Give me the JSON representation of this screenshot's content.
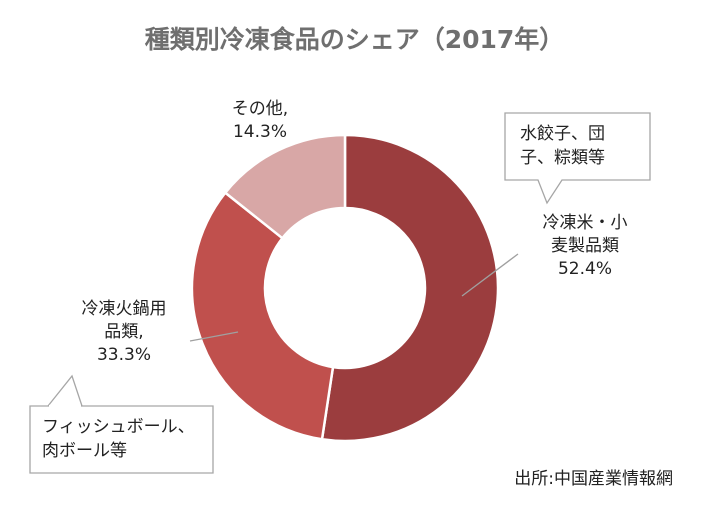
{
  "title": "種類別冷凍食品のシェア（2017年）",
  "chart_data": {
    "type": "pie",
    "subtype": "donut",
    "title": "種類別冷凍食品のシェア（2017年）",
    "slices": [
      {
        "label_lines": [
          "冷凍米・小",
          "麦製品類"
        ],
        "value_text": "52.4%",
        "value": 52.4,
        "color": "#9b3d3e"
      },
      {
        "label_lines": [
          "冷凍火鍋用",
          "品類,"
        ],
        "value_text": "33.3%",
        "value": 33.3,
        "color": "#c0504d"
      },
      {
        "label_lines": [
          "その他,"
        ],
        "value_text": "14.3%",
        "value": 14.3,
        "color": "#d8a7a6"
      }
    ]
  },
  "callouts": [
    {
      "lines": [
        "水餃子、団",
        "子、粽類等"
      ]
    },
    {
      "lines": [
        "フィッシュボール、",
        "肉ボール等"
      ]
    }
  ],
  "source": "出所:中国産業情報網"
}
